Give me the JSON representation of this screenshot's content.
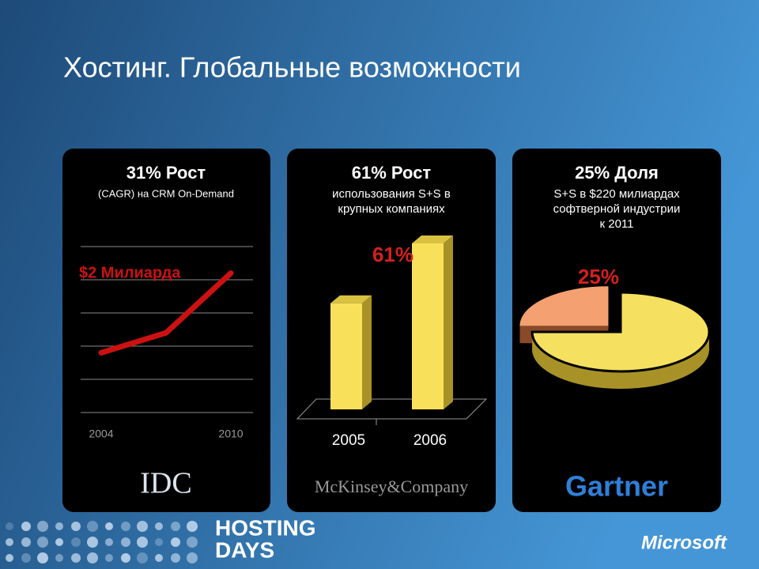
{
  "title": "Хостинг. Глобальные возможности",
  "chart_data": [
    {
      "type": "line",
      "title": "31% Рост",
      "subtitle": [
        "(CAGR) на CRM On-Demand"
      ],
      "annotation": "$2 Милиарда",
      "categories": [
        "2004",
        null,
        "2010"
      ],
      "values": [
        1.8,
        2.4,
        4.2
      ],
      "color": "#cc1111",
      "ylim": [
        0,
        5
      ],
      "yticks": [
        0,
        1,
        2,
        3,
        4,
        5
      ],
      "grid": true,
      "source": "IDC"
    },
    {
      "type": "bar",
      "title": "61% Рост",
      "subtitle": [
        "использования S+S в",
        "крупных компаниях"
      ],
      "categories": [
        "2005",
        "2006"
      ],
      "values": [
        39,
        61
      ],
      "value_labels": [
        null,
        "61%"
      ],
      "color": "#f9e05a",
      "ylim": [
        0,
        70
      ],
      "source": "McKinsey&Company"
    },
    {
      "type": "pie",
      "title": "25% Доля",
      "subtitle": [
        "S+S в $220 милиардах",
        "софтверной индустрии",
        "к 2011"
      ],
      "values": [
        25,
        75
      ],
      "value_labels": [
        "25%",
        null
      ],
      "colors": [
        "#f4a070",
        "#f5e060"
      ],
      "source": "Gartner"
    }
  ],
  "footer": {
    "event": [
      "HOSTING",
      "DAYS"
    ],
    "company": "Microsoft"
  }
}
